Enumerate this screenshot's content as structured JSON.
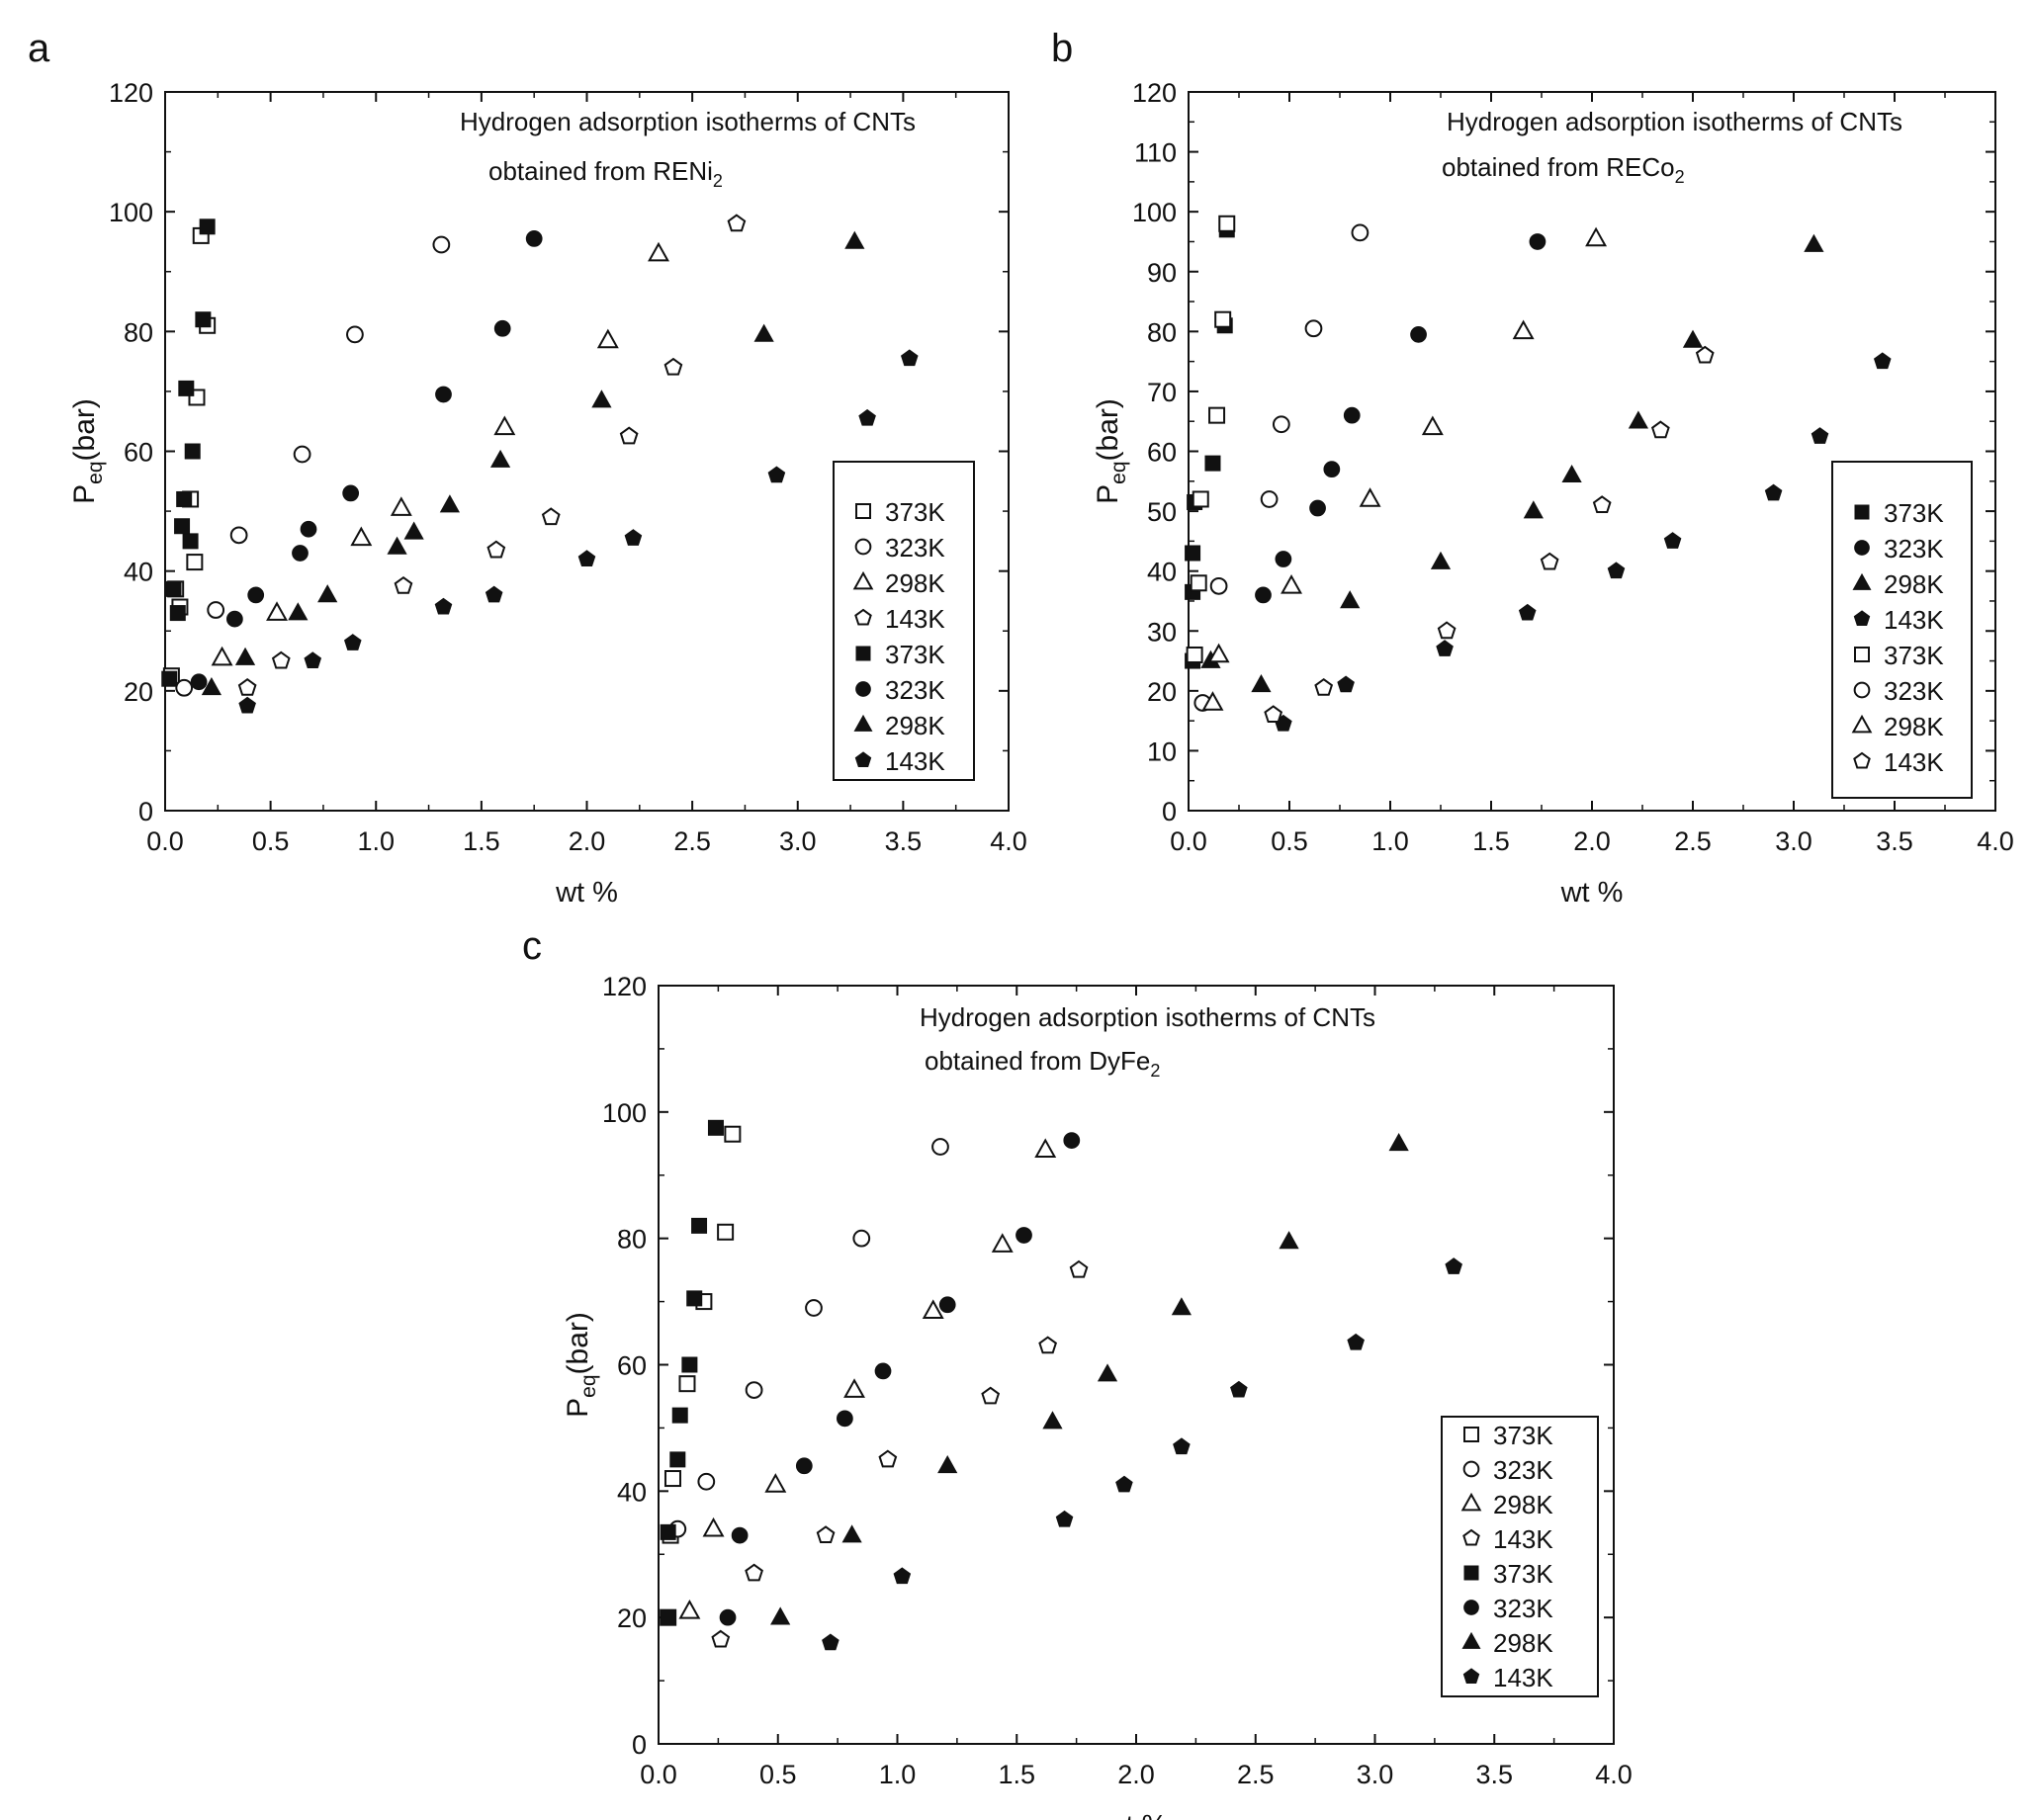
{
  "chart_data": [
    {
      "panel": "a",
      "type": "scatter",
      "title": "Hydrogen adsorption isotherms of CNTs",
      "subtitle_prefix": "obtained from RENi",
      "subtitle_sub": "2",
      "xlabel": "wt %",
      "ylabel_main": "P",
      "ylabel_sub": "eq",
      "ylabel_tail": "(bar)",
      "xlim": [
        0,
        4
      ],
      "ylim": [
        0,
        120
      ],
      "xticks": [
        0,
        0.5,
        1,
        1.5,
        2,
        2.5,
        3,
        3.5,
        4
      ],
      "xtick_labels": [
        "0.0",
        "0.5",
        "1.0",
        "1.5",
        "2.0",
        "2.5",
        "3.0",
        "3.5",
        "4.0"
      ],
      "yticks": [
        0,
        20,
        40,
        60,
        80,
        100,
        120
      ],
      "ytick_labels": [
        "0",
        "20",
        "40",
        "60",
        "80",
        "100",
        "120"
      ],
      "grid": false,
      "legend_position": "right",
      "series": [
        {
          "name": "373K",
          "marker": "square",
          "filled": false,
          "points": [
            [
              0.03,
              22.5
            ],
            [
              0.05,
              37
            ],
            [
              0.07,
              34
            ],
            [
              0.12,
              52
            ],
            [
              0.14,
              41.5
            ],
            [
              0.15,
              69
            ],
            [
              0.17,
              96
            ],
            [
              0.2,
              81
            ]
          ]
        },
        {
          "name": "323K",
          "marker": "circle",
          "filled": false,
          "points": [
            [
              0.09,
              20.5
            ],
            [
              0.24,
              33.5
            ],
            [
              0.35,
              46
            ],
            [
              0.65,
              59.5
            ],
            [
              0.9,
              79.5
            ],
            [
              1.31,
              94.5
            ]
          ]
        },
        {
          "name": "298K",
          "marker": "triangle",
          "filled": false,
          "points": [
            [
              0.27,
              25.5
            ],
            [
              0.53,
              33
            ],
            [
              0.93,
              45.5
            ],
            [
              1.12,
              50.5
            ],
            [
              1.61,
              64
            ],
            [
              2.1,
              78.5
            ],
            [
              2.34,
              93
            ]
          ]
        },
        {
          "name": "143K",
          "marker": "pentagon",
          "filled": false,
          "points": [
            [
              0.39,
              20.5
            ],
            [
              0.55,
              25
            ],
            [
              1.13,
              37.5
            ],
            [
              1.57,
              43.5
            ],
            [
              1.83,
              49
            ],
            [
              2.2,
              62.5
            ],
            [
              2.41,
              74
            ],
            [
              2.71,
              98
            ]
          ]
        },
        {
          "name": "373K",
          "marker": "square",
          "filled": true,
          "points": [
            [
              0.02,
              22
            ],
            [
              0.04,
              37
            ],
            [
              0.06,
              33
            ],
            [
              0.08,
              47.5
            ],
            [
              0.09,
              52
            ],
            [
              0.1,
              70.5
            ],
            [
              0.12,
              45
            ],
            [
              0.13,
              60
            ],
            [
              0.18,
              82
            ],
            [
              0.2,
              97.5
            ]
          ]
        },
        {
          "name": "323K",
          "marker": "circle",
          "filled": true,
          "points": [
            [
              0.16,
              21.5
            ],
            [
              0.33,
              32
            ],
            [
              0.43,
              36
            ],
            [
              0.64,
              43
            ],
            [
              0.68,
              47
            ],
            [
              0.88,
              53
            ],
            [
              1.32,
              69.5
            ],
            [
              1.6,
              80.5
            ],
            [
              1.75,
              95.5
            ]
          ]
        },
        {
          "name": "298K",
          "marker": "triangle",
          "filled": true,
          "points": [
            [
              0.22,
              20.5
            ],
            [
              0.38,
              25.5
            ],
            [
              0.63,
              33
            ],
            [
              0.77,
              36
            ],
            [
              1.1,
              44
            ],
            [
              1.18,
              46.5
            ],
            [
              1.35,
              51
            ],
            [
              1.59,
              58.5
            ],
            [
              2.07,
              68.5
            ],
            [
              2.84,
              79.5
            ],
            [
              3.27,
              95
            ]
          ]
        },
        {
          "name": "143K",
          "marker": "pentagon",
          "filled": true,
          "points": [
            [
              0.39,
              17.5
            ],
            [
              0.7,
              25
            ],
            [
              0.89,
              28
            ],
            [
              1.32,
              34
            ],
            [
              1.56,
              36
            ],
            [
              2.0,
              42
            ],
            [
              2.22,
              45.5
            ],
            [
              2.9,
              56
            ],
            [
              3.33,
              65.5
            ],
            [
              3.53,
              75.5
            ]
          ]
        }
      ]
    },
    {
      "panel": "b",
      "type": "scatter",
      "title": "Hydrogen adsorption isotherms of CNTs",
      "subtitle_prefix": "obtained from RECo",
      "subtitle_sub": "2",
      "xlabel": "wt %",
      "ylabel_main": "P",
      "ylabel_sub": "eq",
      "ylabel_tail": "(bar)",
      "xlim": [
        0,
        4
      ],
      "ylim": [
        0,
        120
      ],
      "xticks": [
        0,
        0.5,
        1,
        1.5,
        2,
        2.5,
        3,
        3.5,
        4
      ],
      "xtick_labels": [
        "0.0",
        "0.5",
        "1.0",
        "1.5",
        "2.0",
        "2.5",
        "3.0",
        "3.5",
        "4.0"
      ],
      "yticks": [
        0,
        10,
        20,
        30,
        40,
        50,
        60,
        70,
        80,
        90,
        100,
        110,
        120
      ],
      "ytick_labels": [
        "0",
        "10",
        "20",
        "30",
        "40",
        "50",
        "60",
        "70",
        "80",
        "90",
        "100",
        "110",
        "120"
      ],
      "grid": false,
      "legend_position": "right",
      "series": [
        {
          "name": "373K",
          "marker": "square",
          "filled": true,
          "points": [
            [
              0.02,
              25
            ],
            [
              0.02,
              36.5
            ],
            [
              0.02,
              43
            ],
            [
              0.03,
              51.5
            ],
            [
              0.12,
              58
            ],
            [
              0.18,
              81
            ],
            [
              0.19,
              97
            ]
          ]
        },
        {
          "name": "323K",
          "marker": "circle",
          "filled": true,
          "points": [
            [
              0.37,
              36
            ],
            [
              0.47,
              42
            ],
            [
              0.64,
              50.5
            ],
            [
              0.71,
              57
            ],
            [
              0.81,
              66
            ],
            [
              1.14,
              79.5
            ],
            [
              1.73,
              95
            ]
          ]
        },
        {
          "name": "298K",
          "marker": "triangle",
          "filled": true,
          "points": [
            [
              0.11,
              25
            ],
            [
              0.36,
              21
            ],
            [
              0.8,
              35
            ],
            [
              1.25,
              41.5
            ],
            [
              1.71,
              50
            ],
            [
              1.9,
              56
            ],
            [
              2.23,
              65
            ],
            [
              2.5,
              78.5
            ],
            [
              3.1,
              94.5
            ]
          ]
        },
        {
          "name": "143K",
          "marker": "pentagon",
          "filled": true,
          "points": [
            [
              0.47,
              14.5
            ],
            [
              0.78,
              21
            ],
            [
              1.27,
              27
            ],
            [
              1.68,
              33
            ],
            [
              2.12,
              40
            ],
            [
              2.4,
              45
            ],
            [
              2.9,
              53
            ],
            [
              3.13,
              62.5
            ],
            [
              3.44,
              75
            ]
          ]
        },
        {
          "name": "373K",
          "marker": "square",
          "filled": false,
          "points": [
            [
              0.03,
              26
            ],
            [
              0.05,
              38
            ],
            [
              0.06,
              52
            ],
            [
              0.14,
              66
            ],
            [
              0.17,
              82
            ],
            [
              0.19,
              98
            ]
          ]
        },
        {
          "name": "323K",
          "marker": "circle",
          "filled": false,
          "points": [
            [
              0.07,
              18
            ],
            [
              0.15,
              37.5
            ],
            [
              0.4,
              52
            ],
            [
              0.46,
              64.5
            ],
            [
              0.62,
              80.5
            ],
            [
              0.85,
              96.5
            ]
          ]
        },
        {
          "name": "298K",
          "marker": "triangle",
          "filled": false,
          "points": [
            [
              0.12,
              18
            ],
            [
              0.15,
              26
            ],
            [
              0.51,
              37.5
            ],
            [
              0.9,
              52
            ],
            [
              1.21,
              64
            ],
            [
              1.66,
              80
            ],
            [
              2.02,
              95.5
            ]
          ]
        },
        {
          "name": "143K",
          "marker": "pentagon",
          "filled": false,
          "points": [
            [
              0.42,
              16
            ],
            [
              0.67,
              20.5
            ],
            [
              1.28,
              30
            ],
            [
              1.79,
              41.5
            ],
            [
              2.05,
              51
            ],
            [
              2.34,
              63.5
            ],
            [
              2.56,
              76
            ]
          ]
        }
      ]
    },
    {
      "panel": "c",
      "type": "scatter",
      "title": "Hydrogen adsorption isotherms of CNTs",
      "subtitle_prefix": "obtained from DyFe",
      "subtitle_sub": "2",
      "xlabel": "wt %",
      "ylabel_main": "P",
      "ylabel_sub": "eq",
      "ylabel_tail": "(bar)",
      "xlim": [
        0,
        4
      ],
      "ylim": [
        0,
        120
      ],
      "xticks": [
        0,
        0.5,
        1,
        1.5,
        2,
        2.5,
        3,
        3.5,
        4
      ],
      "xtick_labels": [
        "0.0",
        "0.5",
        "1.0",
        "1.5",
        "2.0",
        "2.5",
        "3.0",
        "3.5",
        "4.0"
      ],
      "yticks": [
        0,
        20,
        40,
        60,
        80,
        100,
        120
      ],
      "ytick_labels": [
        "0",
        "20",
        "40",
        "60",
        "80",
        "100",
        "120"
      ],
      "grid": false,
      "legend_position": "right",
      "series": [
        {
          "name": "373K",
          "marker": "square",
          "filled": false,
          "points": [
            [
              0.04,
              20
            ],
            [
              0.05,
              33
            ],
            [
              0.06,
              42
            ],
            [
              0.12,
              57
            ],
            [
              0.19,
              70
            ],
            [
              0.28,
              81
            ],
            [
              0.31,
              96.5
            ]
          ]
        },
        {
          "name": "323K",
          "marker": "circle",
          "filled": false,
          "points": [
            [
              0.08,
              34
            ],
            [
              0.2,
              41.5
            ],
            [
              0.4,
              56
            ],
            [
              0.65,
              69
            ],
            [
              0.85,
              80
            ],
            [
              1.18,
              94.5
            ]
          ]
        },
        {
          "name": "298K",
          "marker": "triangle",
          "filled": false,
          "points": [
            [
              0.13,
              21
            ],
            [
              0.23,
              34
            ],
            [
              0.49,
              41
            ],
            [
              0.82,
              56
            ],
            [
              1.15,
              68.5
            ],
            [
              1.44,
              79
            ],
            [
              1.62,
              94
            ]
          ]
        },
        {
          "name": "143K",
          "marker": "pentagon",
          "filled": false,
          "points": [
            [
              0.26,
              16.5
            ],
            [
              0.4,
              27
            ],
            [
              0.7,
              33
            ],
            [
              0.96,
              45
            ],
            [
              1.39,
              55
            ],
            [
              1.63,
              63
            ],
            [
              1.76,
              75
            ]
          ]
        },
        {
          "name": "373K",
          "marker": "square",
          "filled": true,
          "points": [
            [
              0.04,
              20
            ],
            [
              0.04,
              33.5
            ],
            [
              0.08,
              45
            ],
            [
              0.09,
              52
            ],
            [
              0.13,
              60
            ],
            [
              0.15,
              70.5
            ],
            [
              0.17,
              82
            ],
            [
              0.24,
              97.5
            ]
          ]
        },
        {
          "name": "323K",
          "marker": "circle",
          "filled": true,
          "points": [
            [
              0.29,
              20
            ],
            [
              0.34,
              33
            ],
            [
              0.61,
              44
            ],
            [
              0.78,
              51.5
            ],
            [
              0.94,
              59
            ],
            [
              1.21,
              69.5
            ],
            [
              1.53,
              80.5
            ],
            [
              1.73,
              95.5
            ]
          ]
        },
        {
          "name": "298K",
          "marker": "triangle",
          "filled": true,
          "points": [
            [
              0.51,
              20
            ],
            [
              0.81,
              33
            ],
            [
              1.21,
              44
            ],
            [
              1.65,
              51
            ],
            [
              1.88,
              58.5
            ],
            [
              2.19,
              69
            ],
            [
              2.64,
              79.5
            ],
            [
              3.1,
              95
            ]
          ]
        },
        {
          "name": "143K",
          "marker": "pentagon",
          "filled": true,
          "points": [
            [
              0.72,
              16
            ],
            [
              1.02,
              26.5
            ],
            [
              1.7,
              35.5
            ],
            [
              1.95,
              41
            ],
            [
              2.19,
              47
            ],
            [
              2.43,
              56
            ],
            [
              2.92,
              63.5
            ],
            [
              3.33,
              75.5
            ]
          ]
        }
      ]
    }
  ]
}
